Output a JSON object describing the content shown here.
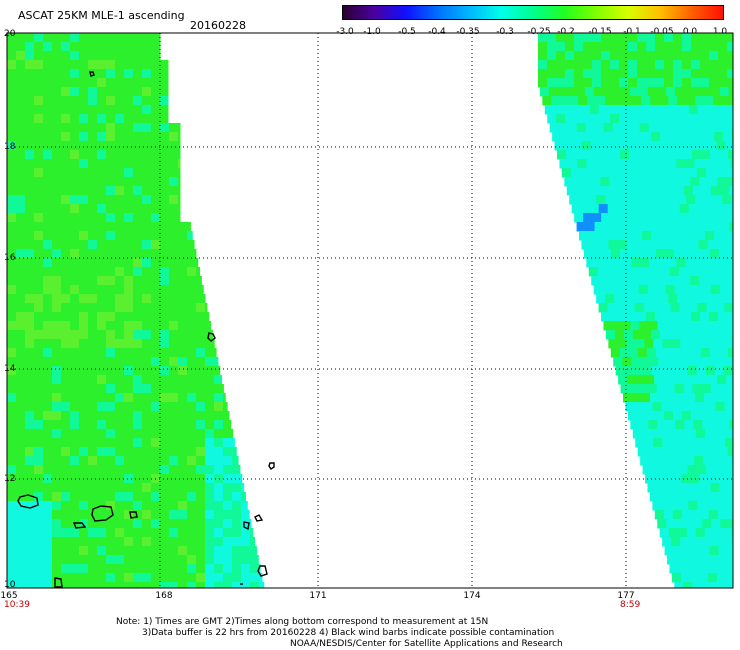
{
  "header": {
    "title": "ASCAT 25KM MLE-1 ascending",
    "date": "20160228"
  },
  "colorbar": {
    "ticks": [
      "-3.0",
      "-1.0",
      "-0.5",
      "-0.4",
      "-0.35",
      "-0.3",
      "-0.25",
      "-0.2",
      "-0.15",
      "-0.1",
      "-0.05",
      "0.0",
      "1.0"
    ],
    "colors": [
      "#2a0030",
      "#4a00a0",
      "#1010ff",
      "#0070ff",
      "#00b8ff",
      "#00ffe8",
      "#00ff90",
      "#20ff20",
      "#80ff00",
      "#d8ff00",
      "#ffc000",
      "#ff6000",
      "#ff1000"
    ]
  },
  "map": {
    "lat_labels": [
      "20",
      "18",
      "16",
      "14",
      "12",
      "10"
    ],
    "lon_labels": [
      "165",
      "168",
      "171",
      "174",
      "177"
    ],
    "left_pass_time": "10:39",
    "right_pass_time": "8:59",
    "swath_colors": {
      "green": "#2cf02c",
      "light_green": "#5af030",
      "cyan_green": "#10f898",
      "cyan": "#10f8e0",
      "blue": "#1090ff"
    }
  },
  "notes": {
    "line1": "Note: 1) Times are GMT 2)Times along bottom correspond to measurement at 15N",
    "line2": "3)Data buffer is 22 hrs from 20160228 4) Black wind barbs indicate possible contamination",
    "line3": "NOAA/NESDIS/Center for Satellite Applications and Research"
  }
}
